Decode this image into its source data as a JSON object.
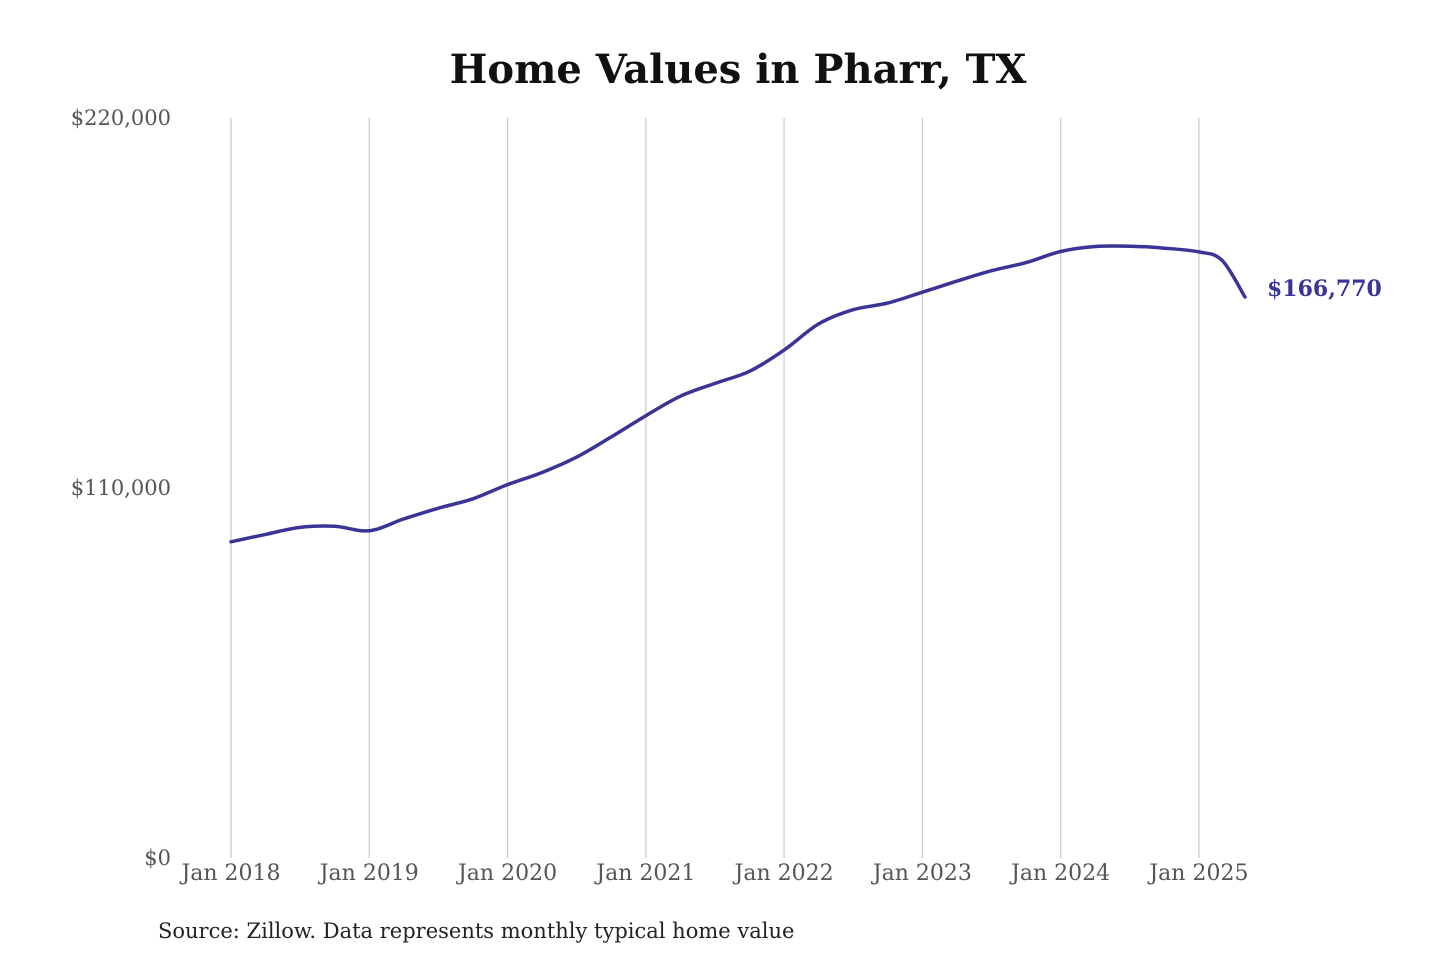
{
  "chart_data": {
    "type": "line",
    "title": "Home Values in Pharr, TX",
    "xlabel": "",
    "ylabel": "",
    "ylim": [
      0,
      220000
    ],
    "ytick_labels": [
      "$0",
      "$110,000",
      "$220,000"
    ],
    "yticks": [
      0,
      110000,
      220000
    ],
    "xtick_labels": [
      "Jan 2018",
      "Jan 2019",
      "Jan 2020",
      "Jan 2021",
      "Jan 2022",
      "Jan 2023",
      "Jan 2024",
      "Jan 2025"
    ],
    "xticks": [
      "2018-01",
      "2019-01",
      "2020-01",
      "2021-01",
      "2022-01",
      "2023-01",
      "2024-01",
      "2025-01"
    ],
    "x_range": [
      "2018-01",
      "2025-05"
    ],
    "grid": "vertical lines at x ticks",
    "line_color": "#3b3497",
    "end_label": "$166,770",
    "series": [
      {
        "x": [
          "2018-01",
          "2018-04",
          "2018-07",
          "2018-10",
          "2019-01",
          "2019-04",
          "2019-07",
          "2019-10",
          "2020-01",
          "2020-04",
          "2020-07",
          "2020-10",
          "2021-01",
          "2021-04",
          "2021-07",
          "2021-10",
          "2022-01",
          "2022-04",
          "2022-07",
          "2022-10",
          "2023-01",
          "2023-04",
          "2023-07",
          "2023-10",
          "2024-01",
          "2024-04",
          "2024-07",
          "2024-10",
          "2025-01",
          "2025-03",
          "2025-05"
        ],
        "values": [
          94000,
          96200,
          98300,
          98600,
          97300,
          100800,
          104000,
          106800,
          111000,
          114600,
          119200,
          125200,
          131500,
          137300,
          141100,
          144700,
          151000,
          158800,
          163000,
          165000,
          168200,
          171500,
          174600,
          177000,
          180300,
          181800,
          181900,
          181300,
          180200,
          177700,
          166770
        ]
      }
    ]
  },
  "footer": {
    "source": "Source: Zillow. Data represents monthly typical home value"
  }
}
